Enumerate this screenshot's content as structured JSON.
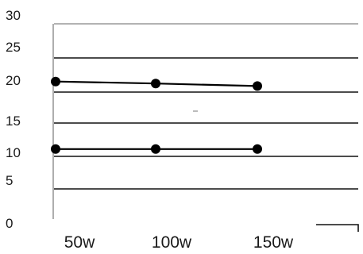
{
  "chart_data": {
    "type": "line",
    "categories": [
      "50w",
      "100w",
      "150w"
    ],
    "series": [
      {
        "values": [
          21.5,
          21.2,
          20.8
        ]
      },
      {
        "values": [
          11.0,
          11.0,
          11.0
        ]
      }
    ],
    "yticks": [
      "0",
      "5",
      "10",
      "15",
      "20",
      "25",
      "30"
    ],
    "ylim": [
      0,
      30
    ],
    "title": "",
    "xlabel": "",
    "ylabel": "",
    "grid": true,
    "colors": {
      "line": "#000000",
      "grid": "#111111"
    }
  }
}
